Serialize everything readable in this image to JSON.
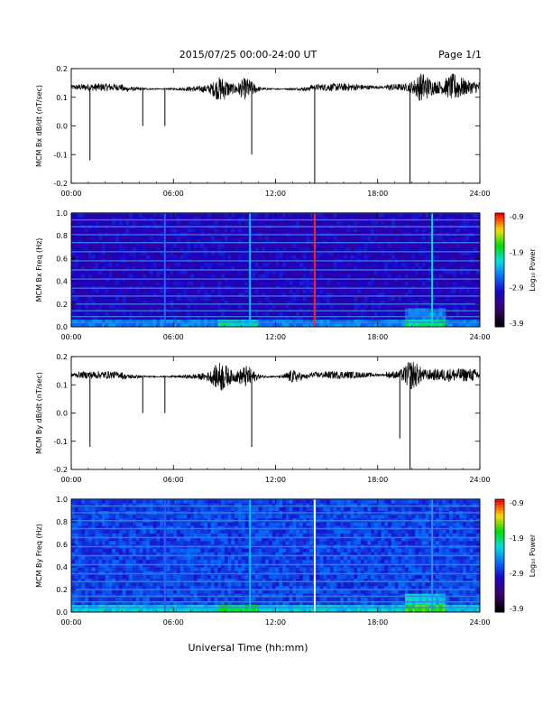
{
  "header": {
    "title": "2015/07/25  00:00-24:00 UT",
    "page": "Page 1/1"
  },
  "footer": {
    "xlabel": "Universal Time (hh:mm)"
  },
  "chart_data": [
    {
      "type": "line",
      "ylabel": "MCM Bx dB/dt (nT/sec)",
      "xlim": [
        0,
        24
      ],
      "ylim": [
        -0.2,
        0.2
      ],
      "x_ticks": [
        "00:00",
        "06:00",
        "12:00",
        "18:00",
        "24:00"
      ],
      "y_ticks": [
        "-0.2",
        "-0.1",
        "0.0",
        "0.1",
        "0.2"
      ],
      "baseline": 0.15,
      "spikes": [
        {
          "x": 1.1,
          "y": -0.12
        },
        {
          "x": 4.2,
          "y": 0.0
        },
        {
          "x": 5.5,
          "y": 0.0
        },
        {
          "x": 10.6,
          "y": -0.1
        },
        {
          "x": 14.3,
          "y": -0.2
        },
        {
          "x": 19.9,
          "y": -0.2
        }
      ],
      "activity": [
        {
          "x": 8.8,
          "amp": 0.03
        },
        {
          "x": 10.3,
          "amp": 0.03
        },
        {
          "x": 20.6,
          "amp": 0.035
        },
        {
          "x": 22.5,
          "amp": 0.025
        }
      ]
    },
    {
      "type": "heatmap",
      "ylabel": "MCM Bx Freq (Hz)",
      "xlim": [
        0,
        24
      ],
      "ylim": [
        0,
        1.0
      ],
      "x_ticks": [
        "00:00",
        "06:00",
        "12:00",
        "18:00",
        "24:00"
      ],
      "y_ticks": [
        "0.0",
        "0.2",
        "0.4",
        "0.6",
        "0.8",
        "1.0"
      ],
      "colorbar_label": "Log₁₀ Power",
      "colorbar_ticks": [
        "-0.9",
        "-1.9",
        "-2.9",
        "-3.9"
      ],
      "colorbar_range": [
        -3.9,
        -0.9
      ],
      "harmonic_lines_hz": [
        0.04,
        0.09,
        0.14,
        0.2,
        0.27,
        0.34,
        0.42,
        0.5,
        0.58,
        0.66,
        0.74,
        0.81,
        0.88,
        0.94,
        1.0
      ],
      "vertical_lines": [
        {
          "x": 5.5,
          "color": "#2a5cff"
        },
        {
          "x": 10.5,
          "color": "#00c0ff"
        },
        {
          "x": 14.3,
          "color": "#ff2020"
        },
        {
          "x": 21.2,
          "color": "#00e0c0"
        }
      ]
    },
    {
      "type": "line",
      "ylabel": "MCM By dB/dt (nT/sec)",
      "xlim": [
        0,
        24
      ],
      "ylim": [
        -0.2,
        0.2
      ],
      "x_ticks": [
        "00:00",
        "06:00",
        "12:00",
        "18:00",
        "24:00"
      ],
      "y_ticks": [
        "-0.2",
        "-0.1",
        "0.0",
        "0.1",
        "0.2"
      ],
      "baseline": 0.15,
      "spikes": [
        {
          "x": 1.1,
          "y": -0.12
        },
        {
          "x": 4.2,
          "y": 0.0
        },
        {
          "x": 5.5,
          "y": 0.0
        },
        {
          "x": 10.6,
          "y": -0.12
        },
        {
          "x": 19.3,
          "y": -0.09
        },
        {
          "x": 19.9,
          "y": -0.2
        }
      ],
      "activity": [
        {
          "x": 8.8,
          "amp": 0.04
        },
        {
          "x": 10.3,
          "amp": 0.03
        },
        {
          "x": 20.0,
          "amp": 0.04
        },
        {
          "x": 13.0,
          "amp": 0.02
        }
      ]
    },
    {
      "type": "heatmap",
      "ylabel": "MCM By Freq (Hz)",
      "xlim": [
        0,
        24
      ],
      "ylim": [
        0,
        1.0
      ],
      "x_ticks": [
        "00:00",
        "06:00",
        "12:00",
        "18:00",
        "24:00"
      ],
      "y_ticks": [
        "0.0",
        "0.2",
        "0.4",
        "0.6",
        "0.8",
        "1.0"
      ],
      "colorbar_label": "Log₁₀ Power",
      "colorbar_ticks": [
        "-0.9",
        "-1.9",
        "-2.9",
        "-3.9"
      ],
      "colorbar_range": [
        -3.9,
        -0.9
      ],
      "harmonic_lines_hz": [
        0.04,
        0.09,
        0.14,
        0.2,
        0.27,
        0.34,
        0.42,
        0.5,
        0.58,
        0.66,
        0.74,
        0.81,
        0.88,
        0.94,
        1.0
      ],
      "vertical_lines": [
        {
          "x": 5.5,
          "color": "#2a5cff"
        },
        {
          "x": 10.5,
          "color": "#00c0ff"
        },
        {
          "x": 14.3,
          "color": "#ffffff"
        },
        {
          "x": 21.2,
          "color": "#2a8cff"
        }
      ]
    }
  ]
}
